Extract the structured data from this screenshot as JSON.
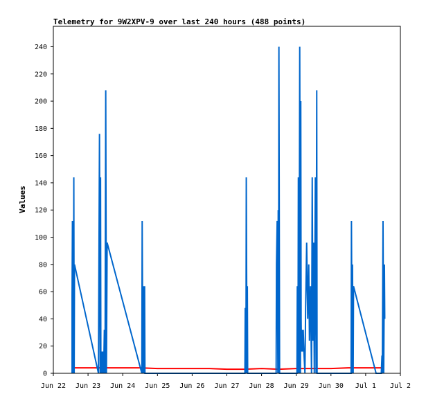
{
  "chart_data": {
    "type": "line",
    "title": "Telemetry for 9W2XPV-9 over last 240 hours (488 points)",
    "xlabel": "",
    "ylabel": "Values",
    "x_unit": "date",
    "xlim": [
      "2022-06-22",
      "2022-07-02"
    ],
    "ylim": [
      0,
      255
    ],
    "yticks": [
      0,
      20,
      40,
      60,
      80,
      100,
      120,
      140,
      160,
      180,
      200,
      220,
      240
    ],
    "xticks": [
      "Jun 22",
      "Jun 23",
      "Jun 24",
      "Jun 25",
      "Jun 26",
      "Jun 27",
      "Jun 28",
      "Jun 29",
      "Jun 30",
      "Jul 1",
      "Jul 2"
    ],
    "grid": false,
    "legend": "none",
    "series": [
      {
        "color": "#0066cc",
        "points": [
          [
            0.54,
            0
          ],
          [
            0.54,
            56
          ],
          [
            0.55,
            112
          ],
          [
            0.56,
            0
          ],
          [
            0.57,
            8
          ],
          [
            0.58,
            0
          ],
          [
            0.59,
            144
          ],
          [
            0.6,
            0
          ],
          [
            0.61,
            80
          ],
          [
            1.3,
            0
          ],
          [
            1.33,
            176
          ],
          [
            1.35,
            0
          ],
          [
            1.36,
            144
          ],
          [
            1.37,
            0
          ],
          [
            1.39,
            16
          ],
          [
            1.41,
            0
          ],
          [
            1.43,
            16
          ],
          [
            1.45,
            0
          ],
          [
            1.47,
            32
          ],
          [
            1.49,
            0
          ],
          [
            1.51,
            208
          ],
          [
            1.53,
            0
          ],
          [
            1.55,
            96
          ],
          [
            2.55,
            0
          ],
          [
            2.56,
            112
          ],
          [
            2.58,
            0
          ],
          [
            2.6,
            64
          ],
          [
            2.62,
            0
          ],
          [
            2.63,
            64
          ],
          [
            2.64,
            0
          ],
          [
            5.52,
            0
          ],
          [
            5.53,
            48
          ],
          [
            5.55,
            0
          ],
          [
            5.56,
            144
          ],
          [
            5.58,
            0
          ],
          [
            5.59,
            64
          ],
          [
            5.6,
            0
          ],
          [
            6.42,
            0
          ],
          [
            6.43,
            80
          ],
          [
            6.45,
            112
          ],
          [
            6.47,
            0
          ],
          [
            6.48,
            120
          ],
          [
            6.49,
            0
          ],
          [
            6.5,
            240
          ],
          [
            6.52,
            0
          ],
          [
            7.02,
            0
          ],
          [
            7.03,
            64
          ],
          [
            7.05,
            0
          ],
          [
            7.06,
            144
          ],
          [
            7.08,
            0
          ],
          [
            7.1,
            240
          ],
          [
            7.12,
            0
          ],
          [
            7.13,
            200
          ],
          [
            7.14,
            40
          ],
          [
            7.15,
            16
          ],
          [
            7.17,
            32
          ],
          [
            7.18,
            16
          ],
          [
            7.2,
            32
          ],
          [
            7.22,
            16
          ],
          [
            7.25,
            0
          ],
          [
            7.27,
            48
          ],
          [
            7.3,
            96
          ],
          [
            7.33,
            40
          ],
          [
            7.36,
            80
          ],
          [
            7.38,
            24
          ],
          [
            7.41,
            64
          ],
          [
            7.44,
            0
          ],
          [
            7.46,
            144
          ],
          [
            7.48,
            24
          ],
          [
            7.5,
            96
          ],
          [
            7.52,
            0
          ],
          [
            7.55,
            144
          ],
          [
            7.57,
            0
          ],
          [
            7.59,
            208
          ],
          [
            7.6,
            0
          ],
          [
            8.58,
            0
          ],
          [
            8.59,
            112
          ],
          [
            8.61,
            0
          ],
          [
            8.62,
            80
          ],
          [
            8.64,
            0
          ],
          [
            8.65,
            64
          ],
          [
            9.3,
            0
          ],
          [
            9.45,
            0
          ],
          [
            9.47,
            13
          ],
          [
            9.48,
            0
          ],
          [
            9.5,
            112
          ],
          [
            9.52,
            0
          ],
          [
            9.54,
            80
          ],
          [
            9.55,
            40
          ]
        ]
      },
      {
        "color": "#ff0000",
        "points": [
          [
            0.58,
            4
          ],
          [
            0.6,
            4
          ],
          [
            1.0,
            4
          ],
          [
            1.5,
            4
          ],
          [
            2.0,
            4
          ],
          [
            2.5,
            4
          ],
          [
            3.0,
            3.5
          ],
          [
            3.5,
            3.5
          ],
          [
            4.0,
            3.5
          ],
          [
            4.5,
            3.5
          ],
          [
            5.0,
            3
          ],
          [
            5.5,
            3
          ],
          [
            6.0,
            3.5
          ],
          [
            6.5,
            3
          ],
          [
            7.0,
            3.5
          ],
          [
            7.5,
            3.5
          ],
          [
            8.0,
            3.5
          ],
          [
            8.5,
            4
          ],
          [
            9.0,
            4
          ],
          [
            9.5,
            4
          ]
        ]
      }
    ]
  }
}
